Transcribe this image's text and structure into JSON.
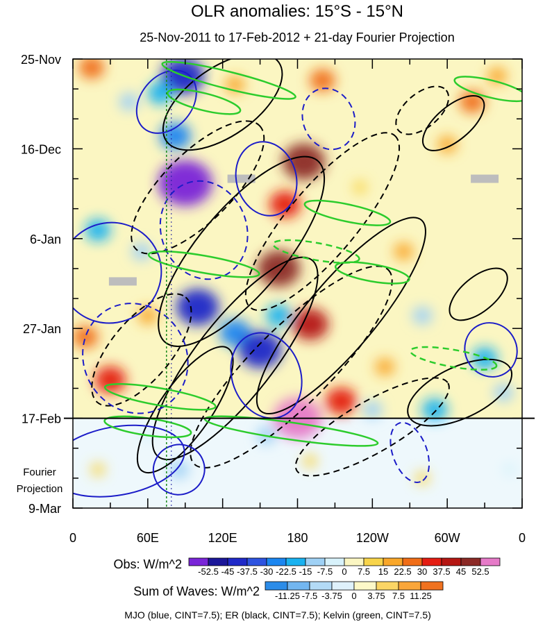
{
  "chart_data": {
    "type": "heatmap",
    "title": "OLR anomalies: 15°S - 15°N",
    "subtitle": "25-Nov-2011 to 17-Feb-2012 + 21-day Fourier Projection",
    "y_axis": {
      "tick_labels": [
        "25-Nov",
        "16-Dec",
        "6-Jan",
        "27-Jan",
        "17-Feb",
        "9-Mar"
      ],
      "tick_day_index": [
        0,
        21,
        42,
        63,
        84,
        105
      ],
      "reversed": true,
      "projection_label": [
        "Fourier",
        "Projection"
      ],
      "projection_start_day": 84
    },
    "x_axis": {
      "tick_labels": [
        "0",
        "60E",
        "120E",
        "180",
        "120W",
        "60W",
        "0"
      ],
      "tick_longitude_east": [
        0,
        60,
        120,
        180,
        240,
        300,
        360
      ],
      "range": [
        0,
        360
      ]
    },
    "reference_line_longitude": 75,
    "obs_colorbar": {
      "label": "Obs: W/m^2",
      "levels": [
        "-52.5",
        "-45",
        "-37.5",
        "-30",
        "-22.5",
        "-15",
        "-7.5",
        "0",
        "7.5",
        "15",
        "22.5",
        "30",
        "37.5",
        "45",
        "52.5"
      ],
      "colors": [
        "#7a25d8",
        "#1b1699",
        "#1f29c8",
        "#2d53e0",
        "#1a86f0",
        "#19b2f0",
        "#9fd1f5",
        "#d8f2fb",
        "#fbf6c2",
        "#f8d44a",
        "#f9a72a",
        "#f06d17",
        "#e41d12",
        "#b51713",
        "#8c2a26",
        "#e67ac8"
      ]
    },
    "waves_colorbar": {
      "label": "Sum of Waves: W/m^2",
      "levels": [
        "-11.25",
        "-7.5",
        "-3.75",
        "0",
        "3.75",
        "7.5",
        "11.25"
      ],
      "colors": [
        "#2c8ce8",
        "#73b6f0",
        "#b3daf6",
        "#dff1fb",
        "#fdf8c8",
        "#fbd565",
        "#f9a63a",
        "#f07220"
      ]
    },
    "contour_legend": "MJO (blue, CINT=7.5); ER (black, CINT=7.5); Kelvin (green, CINT=7.5)",
    "wave_colors": {
      "mjo": "#1b1cc8",
      "er": "#000000",
      "kelvin": "#2ccc2c"
    },
    "obs_patches": [
      {
        "lon": 88,
        "day": 4,
        "value": -45
      },
      {
        "lon": 82,
        "day": 18,
        "value": -30
      },
      {
        "lon": 90,
        "day": 29,
        "value": -60
      },
      {
        "lon": 70,
        "day": 8,
        "value": -22.5
      },
      {
        "lon": 45,
        "day": 10,
        "value": -15
      },
      {
        "lon": 20,
        "day": 40,
        "value": -22.5
      },
      {
        "lon": 55,
        "day": 45,
        "value": -15
      },
      {
        "lon": 100,
        "day": 58,
        "value": -45
      },
      {
        "lon": 130,
        "day": 64,
        "value": -30
      },
      {
        "lon": 150,
        "day": 68,
        "value": -45
      },
      {
        "lon": 165,
        "day": 60,
        "value": -22.5
      },
      {
        "lon": 30,
        "day": 75,
        "value": 30
      },
      {
        "lon": 10,
        "day": 65,
        "value": 22.5
      },
      {
        "lon": 60,
        "day": 60,
        "value": 15
      },
      {
        "lon": 185,
        "day": 24,
        "value": 45
      },
      {
        "lon": 170,
        "day": 34,
        "value": 30
      },
      {
        "lon": 165,
        "day": 49,
        "value": 45
      },
      {
        "lon": 190,
        "day": 62,
        "value": 37.5
      },
      {
        "lon": 180,
        "day": 84,
        "value": 52.5
      },
      {
        "lon": 215,
        "day": 80,
        "value": 30
      },
      {
        "lon": 250,
        "day": 72,
        "value": 15
      },
      {
        "lon": 265,
        "day": 45,
        "value": 15
      },
      {
        "lon": 230,
        "day": 30,
        "value": 7.5
      },
      {
        "lon": 300,
        "day": 20,
        "value": 15
      },
      {
        "lon": 320,
        "day": 10,
        "value": 22.5
      },
      {
        "lon": 340,
        "day": 4,
        "value": 15
      },
      {
        "lon": 15,
        "day": 2,
        "value": 22.5
      },
      {
        "lon": 130,
        "day": 6,
        "value": 15
      },
      {
        "lon": 200,
        "day": 5,
        "value": 22.5
      },
      {
        "lon": 280,
        "day": 60,
        "value": -15
      },
      {
        "lon": 330,
        "day": 70,
        "value": -22.5
      },
      {
        "lon": 345,
        "day": 78,
        "value": -15
      },
      {
        "lon": 290,
        "day": 82,
        "value": -22.5
      },
      {
        "lon": 240,
        "day": 82,
        "value": -15
      },
      {
        "lon": 60,
        "day": 88,
        "value": -7.5
      },
      {
        "lon": 155,
        "day": 88,
        "value": -15
      },
      {
        "lon": 85,
        "day": 96,
        "value": -15
      },
      {
        "lon": 20,
        "day": 96,
        "value": 7.5
      },
      {
        "lon": 190,
        "day": 94,
        "value": 7.5
      },
      {
        "lon": 280,
        "day": 98,
        "value": 7.5
      },
      {
        "lon": 350,
        "day": 96,
        "value": -7.5
      }
    ],
    "missing_data": [
      {
        "lon": 40,
        "day": 52
      },
      {
        "lon": 135,
        "day": 28
      },
      {
        "lon": 330,
        "day": 28
      }
    ],
    "contours": [
      {
        "wave": "er",
        "style": "solid",
        "lon": 120,
        "day": 10,
        "rlon": 55,
        "rday": 8,
        "angle": -35
      },
      {
        "wave": "er",
        "style": "dashed",
        "lon": 100,
        "day": 30,
        "rlon": 70,
        "rday": 8,
        "angle": -45
      },
      {
        "wave": "er",
        "style": "solid",
        "lon": 135,
        "day": 45,
        "rlon": 95,
        "rday": 10,
        "angle": -50
      },
      {
        "wave": "er",
        "style": "dashed",
        "lon": 200,
        "day": 38,
        "rlon": 90,
        "rday": 8,
        "angle": -50
      },
      {
        "wave": "er",
        "style": "solid",
        "lon": 130,
        "day": 70,
        "rlon": 100,
        "rday": 9,
        "angle": -52
      },
      {
        "wave": "er",
        "style": "dashed",
        "lon": 175,
        "day": 72,
        "rlon": 110,
        "rday": 9,
        "angle": -45
      },
      {
        "wave": "er",
        "style": "solid",
        "lon": 215,
        "day": 60,
        "rlon": 100,
        "rday": 8,
        "angle": -50
      },
      {
        "wave": "er",
        "style": "solid",
        "lon": 90,
        "day": 82,
        "rlon": 60,
        "rday": 6,
        "angle": -55
      },
      {
        "wave": "er",
        "style": "dashed",
        "lon": 240,
        "day": 86,
        "rlon": 70,
        "rday": 6,
        "angle": -30
      },
      {
        "wave": "er",
        "style": "solid",
        "lon": 310,
        "day": 78,
        "rlon": 45,
        "rday": 6,
        "angle": -25
      },
      {
        "wave": "er",
        "style": "dashed",
        "lon": 55,
        "day": 68,
        "rlon": 55,
        "rday": 7,
        "angle": -50
      },
      {
        "wave": "er",
        "style": "solid",
        "lon": 305,
        "day": 15,
        "rlon": 30,
        "rday": 4,
        "angle": -40
      },
      {
        "wave": "er",
        "style": "dashed",
        "lon": 280,
        "day": 12,
        "rlon": 25,
        "rday": 4,
        "angle": -40
      },
      {
        "wave": "er",
        "style": "solid",
        "lon": 325,
        "day": 55,
        "rlon": 28,
        "rday": 4,
        "angle": -40
      },
      {
        "wave": "mjo",
        "style": "solid",
        "lon": 30,
        "day": 50,
        "rlon": 40,
        "rday": 12,
        "angle": 60
      },
      {
        "wave": "mjo",
        "style": "dashed",
        "lon": 50,
        "day": 70,
        "rlon": 45,
        "rday": 12,
        "angle": 60
      },
      {
        "wave": "mjo",
        "style": "solid",
        "lon": 75,
        "day": 10,
        "rlon": 28,
        "rday": 6,
        "angle": -50
      },
      {
        "wave": "mjo",
        "style": "dashed",
        "lon": 105,
        "day": 40,
        "rlon": 40,
        "rday": 10,
        "angle": 70
      },
      {
        "wave": "mjo",
        "style": "solid",
        "lon": 155,
        "day": 28,
        "rlon": 30,
        "rday": 7,
        "angle": 75
      },
      {
        "wave": "mjo",
        "style": "dashed",
        "lon": 205,
        "day": 14,
        "rlon": 25,
        "rday": 6,
        "angle": 70
      },
      {
        "wave": "mjo",
        "style": "solid",
        "lon": 155,
        "day": 74,
        "rlon": 35,
        "rday": 8,
        "angle": 70
      },
      {
        "wave": "mjo",
        "style": "solid",
        "lon": 35,
        "day": 94,
        "rlon": 55,
        "rday": 8,
        "angle": -10
      },
      {
        "wave": "mjo",
        "style": "solid",
        "lon": 85,
        "day": 96,
        "rlon": 20,
        "rday": 6,
        "angle": 70
      },
      {
        "wave": "mjo",
        "style": "dashed",
        "lon": 270,
        "day": 92,
        "rlon": 25,
        "rday": 4,
        "angle": 70
      },
      {
        "wave": "mjo",
        "style": "solid",
        "lon": 335,
        "day": 68,
        "rlon": 22,
        "rday": 6,
        "angle": 60
      },
      {
        "wave": "kelvin",
        "style": "solid",
        "lon": 125,
        "day": 5,
        "rlon": 55,
        "rday": 2,
        "angle": 14
      },
      {
        "wave": "kelvin",
        "style": "solid",
        "lon": 335,
        "day": 7,
        "rlon": 30,
        "rday": 2,
        "angle": 14
      },
      {
        "wave": "kelvin",
        "style": "solid",
        "lon": 105,
        "day": 10,
        "rlon": 30,
        "rday": 2,
        "angle": 14
      },
      {
        "wave": "kelvin",
        "style": "solid",
        "lon": 220,
        "day": 36,
        "rlon": 35,
        "rday": 2,
        "angle": 12
      },
      {
        "wave": "kelvin",
        "style": "solid",
        "lon": 105,
        "day": 48,
        "rlon": 45,
        "rday": 2,
        "angle": 10
      },
      {
        "wave": "kelvin",
        "style": "solid",
        "lon": 240,
        "day": 50,
        "rlon": 30,
        "rday": 2,
        "angle": 10
      },
      {
        "wave": "kelvin",
        "style": "solid",
        "lon": 70,
        "day": 79,
        "rlon": 45,
        "rday": 2,
        "angle": 10
      },
      {
        "wave": "kelvin",
        "style": "solid",
        "lon": 175,
        "day": 87,
        "rlon": 70,
        "rday": 2,
        "angle": 8
      },
      {
        "wave": "kelvin",
        "style": "solid",
        "lon": 60,
        "day": 86,
        "rlon": 35,
        "rday": 2,
        "angle": 8
      },
      {
        "wave": "kelvin",
        "style": "dashed",
        "lon": 195,
        "day": 45,
        "rlon": 35,
        "rday": 2,
        "angle": 10
      },
      {
        "wave": "kelvin",
        "style": "dashed",
        "lon": 305,
        "day": 70,
        "rlon": 35,
        "rday": 2,
        "angle": 10
      }
    ]
  }
}
